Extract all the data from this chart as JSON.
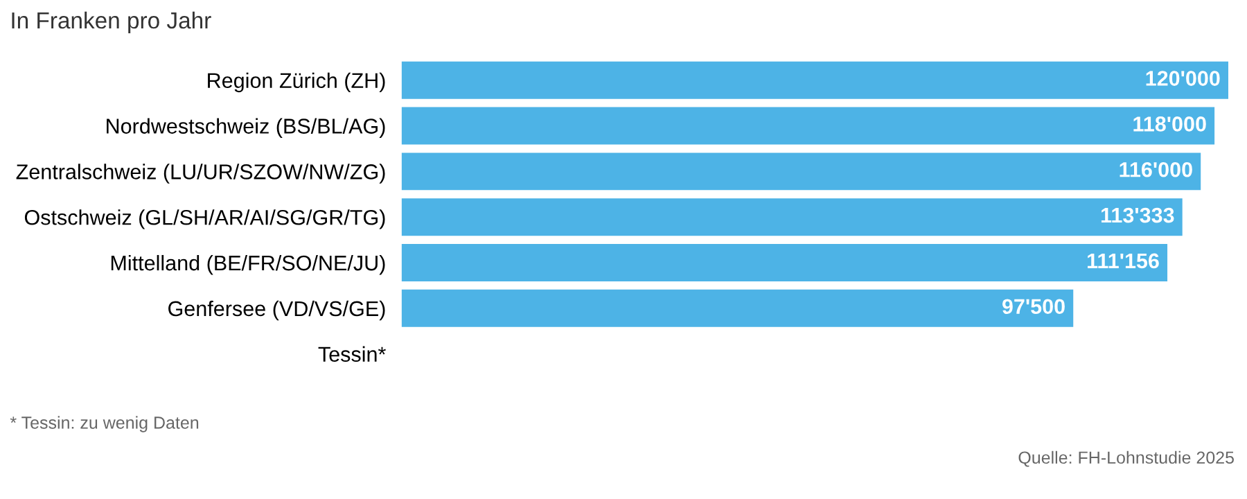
{
  "chart_data": {
    "type": "bar",
    "orientation": "horizontal",
    "title": "In Franken pro Jahr",
    "categories": [
      "Region Zürich (ZH)",
      "Nordwestschweiz (BS/BL/AG)",
      "Zentralschweiz (LU/UR/SZOW/NW/ZG)",
      "Ostschweiz (GL/SH/AR/AI/SG/GR/TG)",
      "Mittelland (BE/FR/SO/NE/JU)",
      "Genfersee (VD/VS/GE)",
      "Tessin*"
    ],
    "values": [
      120000,
      118000,
      116000,
      113333,
      111156,
      97500,
      null
    ],
    "value_labels": [
      "120'000",
      "118'000",
      "116'000",
      "113'333",
      "111'156",
      "97'500",
      null
    ],
    "color": "#4db3e6",
    "annotations": [
      "* Tessin: zu wenig Daten",
      "Quelle: FH-Lohnstudie 2025"
    ],
    "grid": false,
    "legend": false
  }
}
